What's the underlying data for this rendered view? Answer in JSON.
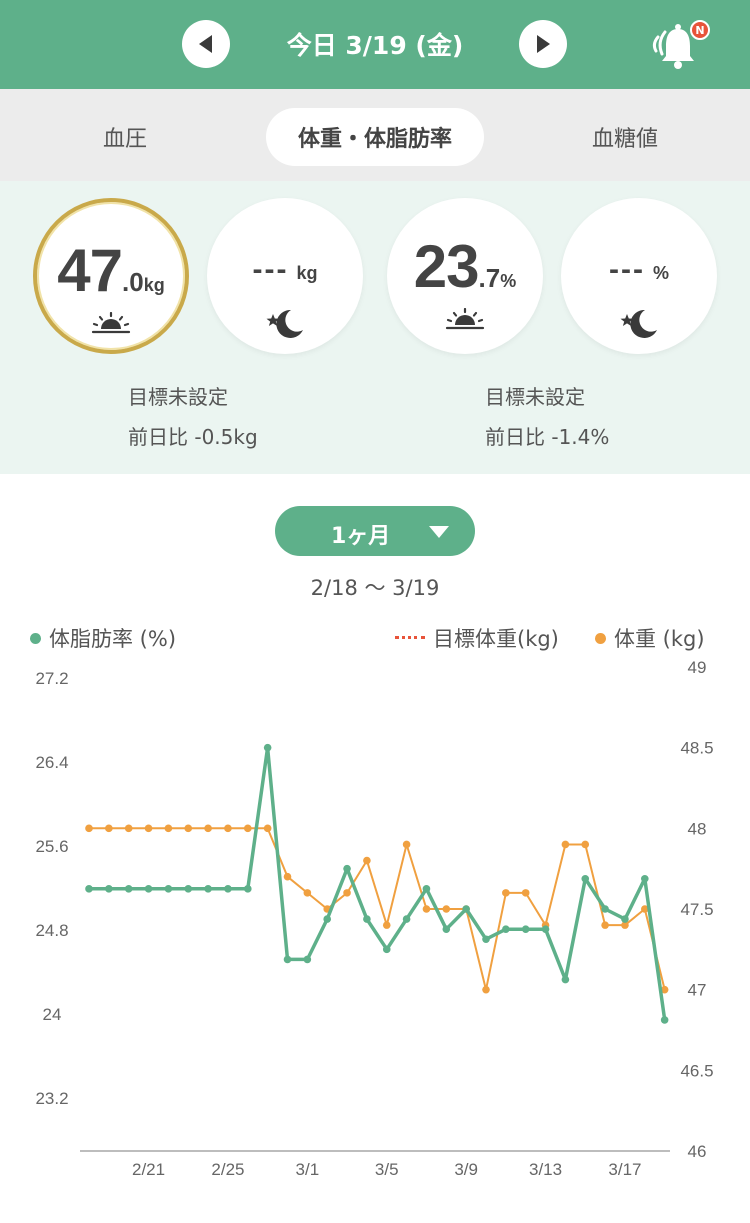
{
  "header": {
    "date_title": "今日 3/19 (金)",
    "prev_icon": "triangle-left-icon",
    "next_icon": "triangle-right-icon",
    "bell_icon": "bell-icon",
    "bell_badge": "N",
    "color": "#5eb08a"
  },
  "tabs": [
    {
      "label": "血圧",
      "active": false
    },
    {
      "label": "体重・体脂肪率",
      "active": true
    },
    {
      "label": "血糖値",
      "active": false
    }
  ],
  "summary": {
    "weight_morning": {
      "int": "47",
      "dec": ".0",
      "unit": "kg",
      "icon": "sunrise-icon"
    },
    "weight_night": {
      "value": "---",
      "unit": "kg",
      "icon": "moon-star-icon"
    },
    "fat_morning": {
      "int": "23",
      "dec": ".7",
      "unit": "%",
      "icon": "sunrise-icon"
    },
    "fat_night": {
      "value": "---",
      "unit": "%",
      "icon": "moon-star-icon"
    },
    "weight_goal": "目標未設定",
    "weight_diff": "前日比 -0.5kg",
    "fat_goal": "目標未設定",
    "fat_diff": "前日比 -1.4%"
  },
  "range": {
    "button_label": "1ヶ月",
    "period": "2/18 〜 3/19"
  },
  "legend": {
    "fat": "体脂肪率 (%)",
    "target": "目標体重(kg)",
    "weight": "体重 (kg)"
  },
  "chart_data": {
    "type": "line",
    "x_labels": [
      "2/21",
      "2/25",
      "3/1",
      "3/5",
      "3/9",
      "3/13",
      "3/17"
    ],
    "left_axis": {
      "ticks": [
        "27.2",
        "26.4",
        "25.6",
        "24.8",
        "24",
        "23.2"
      ],
      "range": [
        22.4,
        27.2
      ]
    },
    "right_axis": {
      "ticks": [
        "49",
        "48.5",
        "48",
        "47.5",
        "47",
        "46.5",
        "46"
      ],
      "range": [
        46,
        49
      ]
    },
    "series": [
      {
        "name": "体脂肪率 (%)",
        "axis": "left",
        "color": "#5eb08a",
        "values": [
          25.0,
          25.0,
          25.0,
          25.0,
          25.0,
          25.0,
          25.0,
          25.0,
          25.0,
          26.4,
          24.3,
          24.3,
          24.7,
          25.2,
          24.7,
          24.4,
          24.7,
          25.0,
          24.6,
          24.8,
          24.5,
          24.6,
          24.6,
          24.6,
          24.1,
          25.1,
          24.8,
          24.7,
          25.1,
          23.7
        ]
      },
      {
        "name": "体重 (kg)",
        "axis": "right",
        "color": "#f0a040",
        "values": [
          48.0,
          48.0,
          48.0,
          48.0,
          48.0,
          48.0,
          48.0,
          48.0,
          48.0,
          48.0,
          47.7,
          47.6,
          47.5,
          47.6,
          47.8,
          47.4,
          47.9,
          47.5,
          47.5,
          47.5,
          47.0,
          47.6,
          47.6,
          47.4,
          47.9,
          47.9,
          47.4,
          47.4,
          47.5,
          47.0
        ]
      }
    ],
    "target_weight": null
  }
}
